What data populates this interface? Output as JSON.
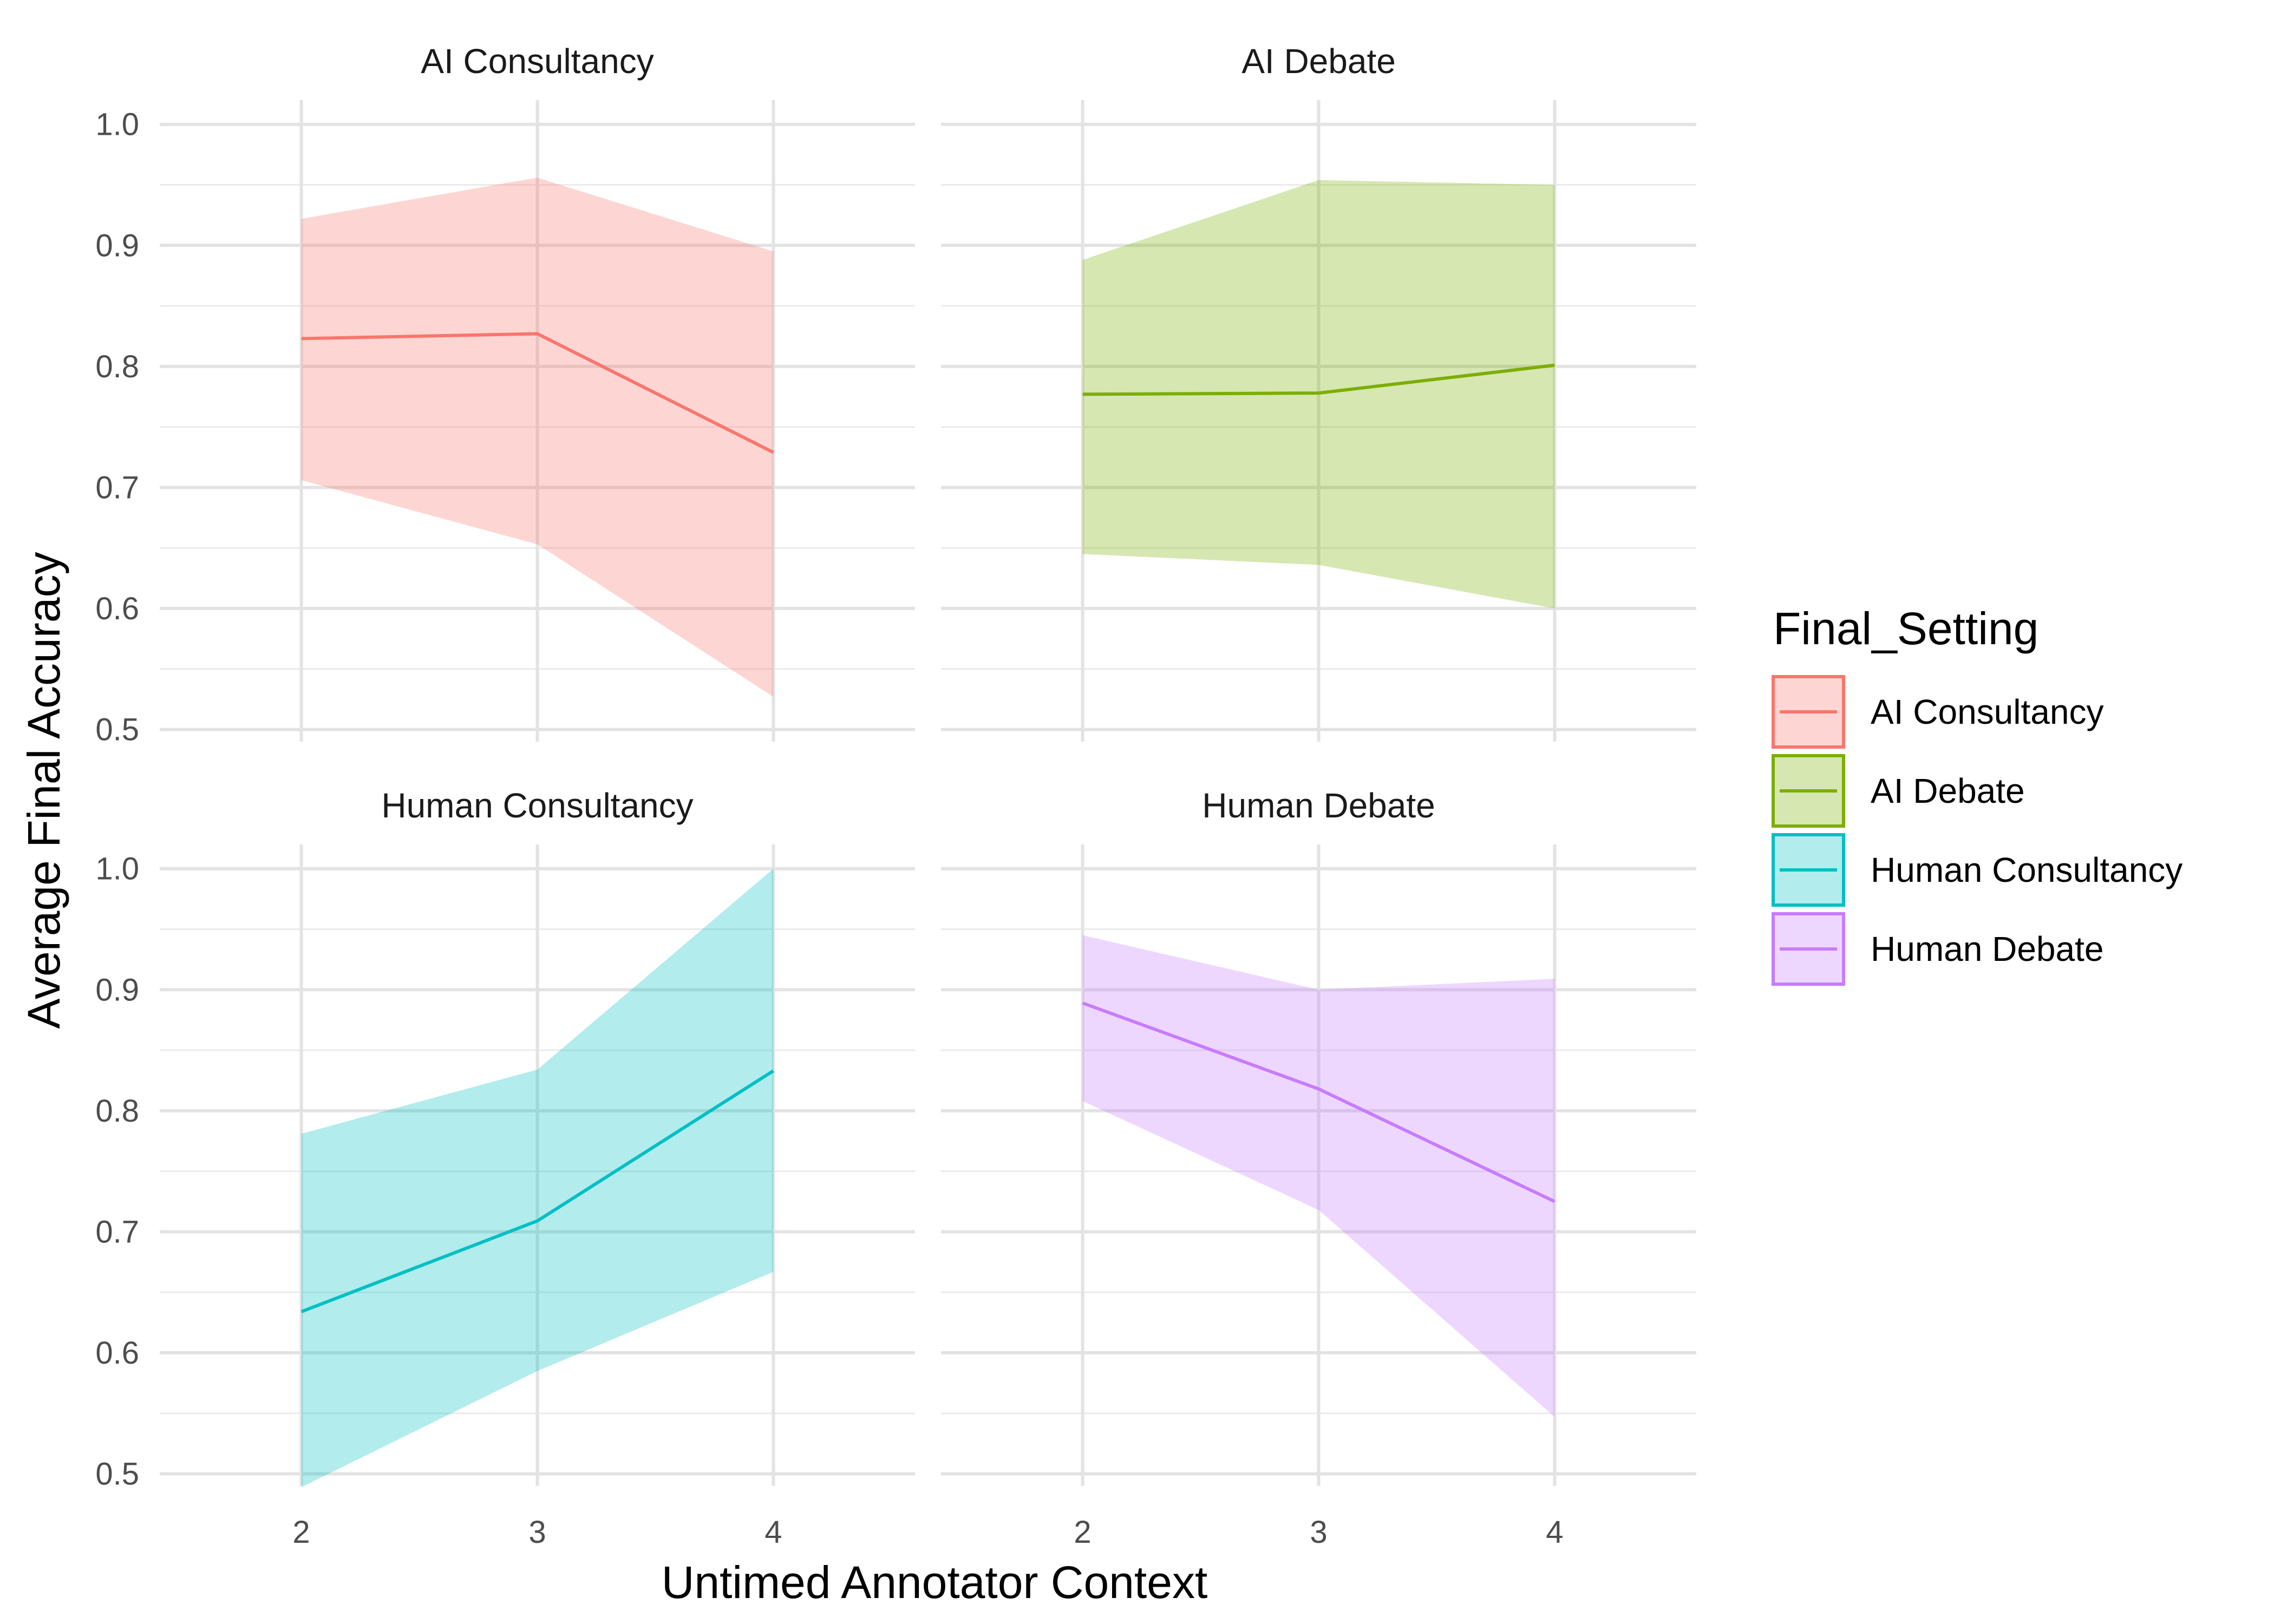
{
  "chart_data": {
    "type": "line",
    "x_label": "Untimed Annotator Context",
    "y_label": "Average Final Accuracy",
    "legend_title": "Final_Setting",
    "legend_position": "right",
    "grid": true,
    "x_ticks": [
      2,
      3,
      4
    ],
    "y_ticks": [
      0.5,
      0.6,
      0.7,
      0.8,
      0.9,
      1.0
    ],
    "y_tick_labels": [
      "0.5",
      "0.6",
      "0.7",
      "0.8",
      "0.9",
      "1.0"
    ],
    "x_tick_labels": [
      "2",
      "3",
      "4"
    ],
    "x_range": [
      1.4,
      4.6
    ],
    "y_range": [
      0.49,
      1.02
    ],
    "facets": [
      {
        "name": "AI Consultancy",
        "color": "#F8766D",
        "x": [
          2,
          3,
          4
        ],
        "y": [
          0.823,
          0.827,
          0.729
        ],
        "lower": [
          0.706,
          0.653,
          0.527
        ],
        "upper": [
          0.922,
          0.956,
          0.895
        ]
      },
      {
        "name": "AI Debate",
        "color": "#7CAE00",
        "x": [
          2,
          3,
          4
        ],
        "y": [
          0.777,
          0.778,
          0.801
        ],
        "lower": [
          0.645,
          0.636,
          0.6
        ],
        "upper": [
          0.888,
          0.954,
          0.95
        ]
      },
      {
        "name": "Human Consultancy",
        "color": "#00BFC4",
        "x": [
          2,
          3,
          4
        ],
        "y": [
          0.634,
          0.709,
          0.833
        ],
        "lower": [
          0.489,
          0.585,
          0.667
        ],
        "upper": [
          0.781,
          0.834,
          1.0
        ]
      },
      {
        "name": "Human Debate",
        "color": "#C77CFF",
        "x": [
          2,
          3,
          4
        ],
        "y": [
          0.889,
          0.818,
          0.725
        ],
        "lower": [
          0.808,
          0.718,
          0.547
        ],
        "upper": [
          0.945,
          0.9,
          0.909
        ]
      }
    ]
  }
}
